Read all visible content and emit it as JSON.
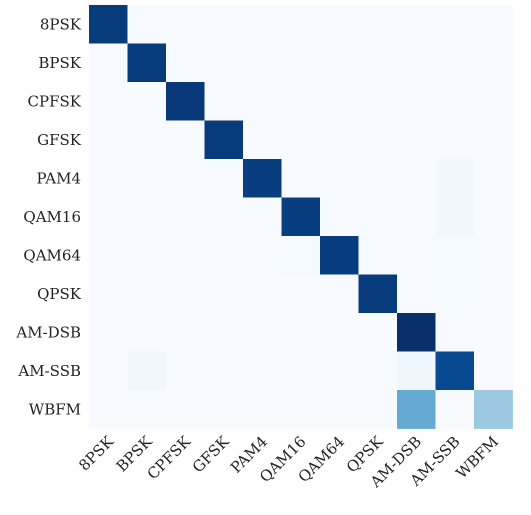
{
  "chart_data": {
    "type": "heatmap",
    "title": "",
    "xlabel": "",
    "ylabel": "",
    "x_categories": [
      "8PSK",
      "BPSK",
      "CPFSK",
      "GFSK",
      "PAM4",
      "QAM16",
      "QAM64",
      "QPSK",
      "AM-DSB",
      "AM-SSB",
      "WBFM"
    ],
    "y_categories": [
      "8PSK",
      "BPSK",
      "CPFSK",
      "GFSK",
      "PAM4",
      "QAM16",
      "QAM64",
      "QPSK",
      "AM-DSB",
      "AM-SSB",
      "WBFM"
    ],
    "values": [
      [
        0.96,
        0,
        0,
        0,
        0,
        0,
        0,
        0,
        0,
        0,
        0
      ],
      [
        0,
        0.96,
        0,
        0,
        0,
        0,
        0,
        0,
        0,
        0,
        0
      ],
      [
        0,
        0,
        0.97,
        0,
        0,
        0,
        0,
        0,
        0,
        0,
        0
      ],
      [
        0,
        0,
        0,
        0.96,
        0,
        0,
        0,
        0,
        0,
        0,
        0
      ],
      [
        0,
        0,
        0,
        0,
        0.95,
        0,
        0,
        0,
        0,
        0.02,
        0
      ],
      [
        0,
        0,
        0,
        0,
        0,
        0.95,
        0,
        0,
        0,
        0.02,
        0
      ],
      [
        0,
        0,
        0,
        0,
        0,
        0.01,
        0.95,
        0,
        0,
        0.01,
        0
      ],
      [
        0,
        0,
        0,
        0,
        0,
        0,
        0,
        0.96,
        0,
        0.01,
        0
      ],
      [
        0,
        0,
        0,
        0,
        0,
        0,
        0,
        0,
        1.0,
        0,
        0
      ],
      [
        0,
        0.03,
        0,
        0,
        0,
        0,
        0,
        0,
        0.04,
        0.9,
        0
      ],
      [
        0,
        0,
        0,
        0,
        0,
        0,
        0,
        0,
        0.52,
        0,
        0.38
      ]
    ],
    "colormap": "Blues",
    "vmin": 0,
    "vmax": 1,
    "grid": false,
    "legend": "none"
  }
}
